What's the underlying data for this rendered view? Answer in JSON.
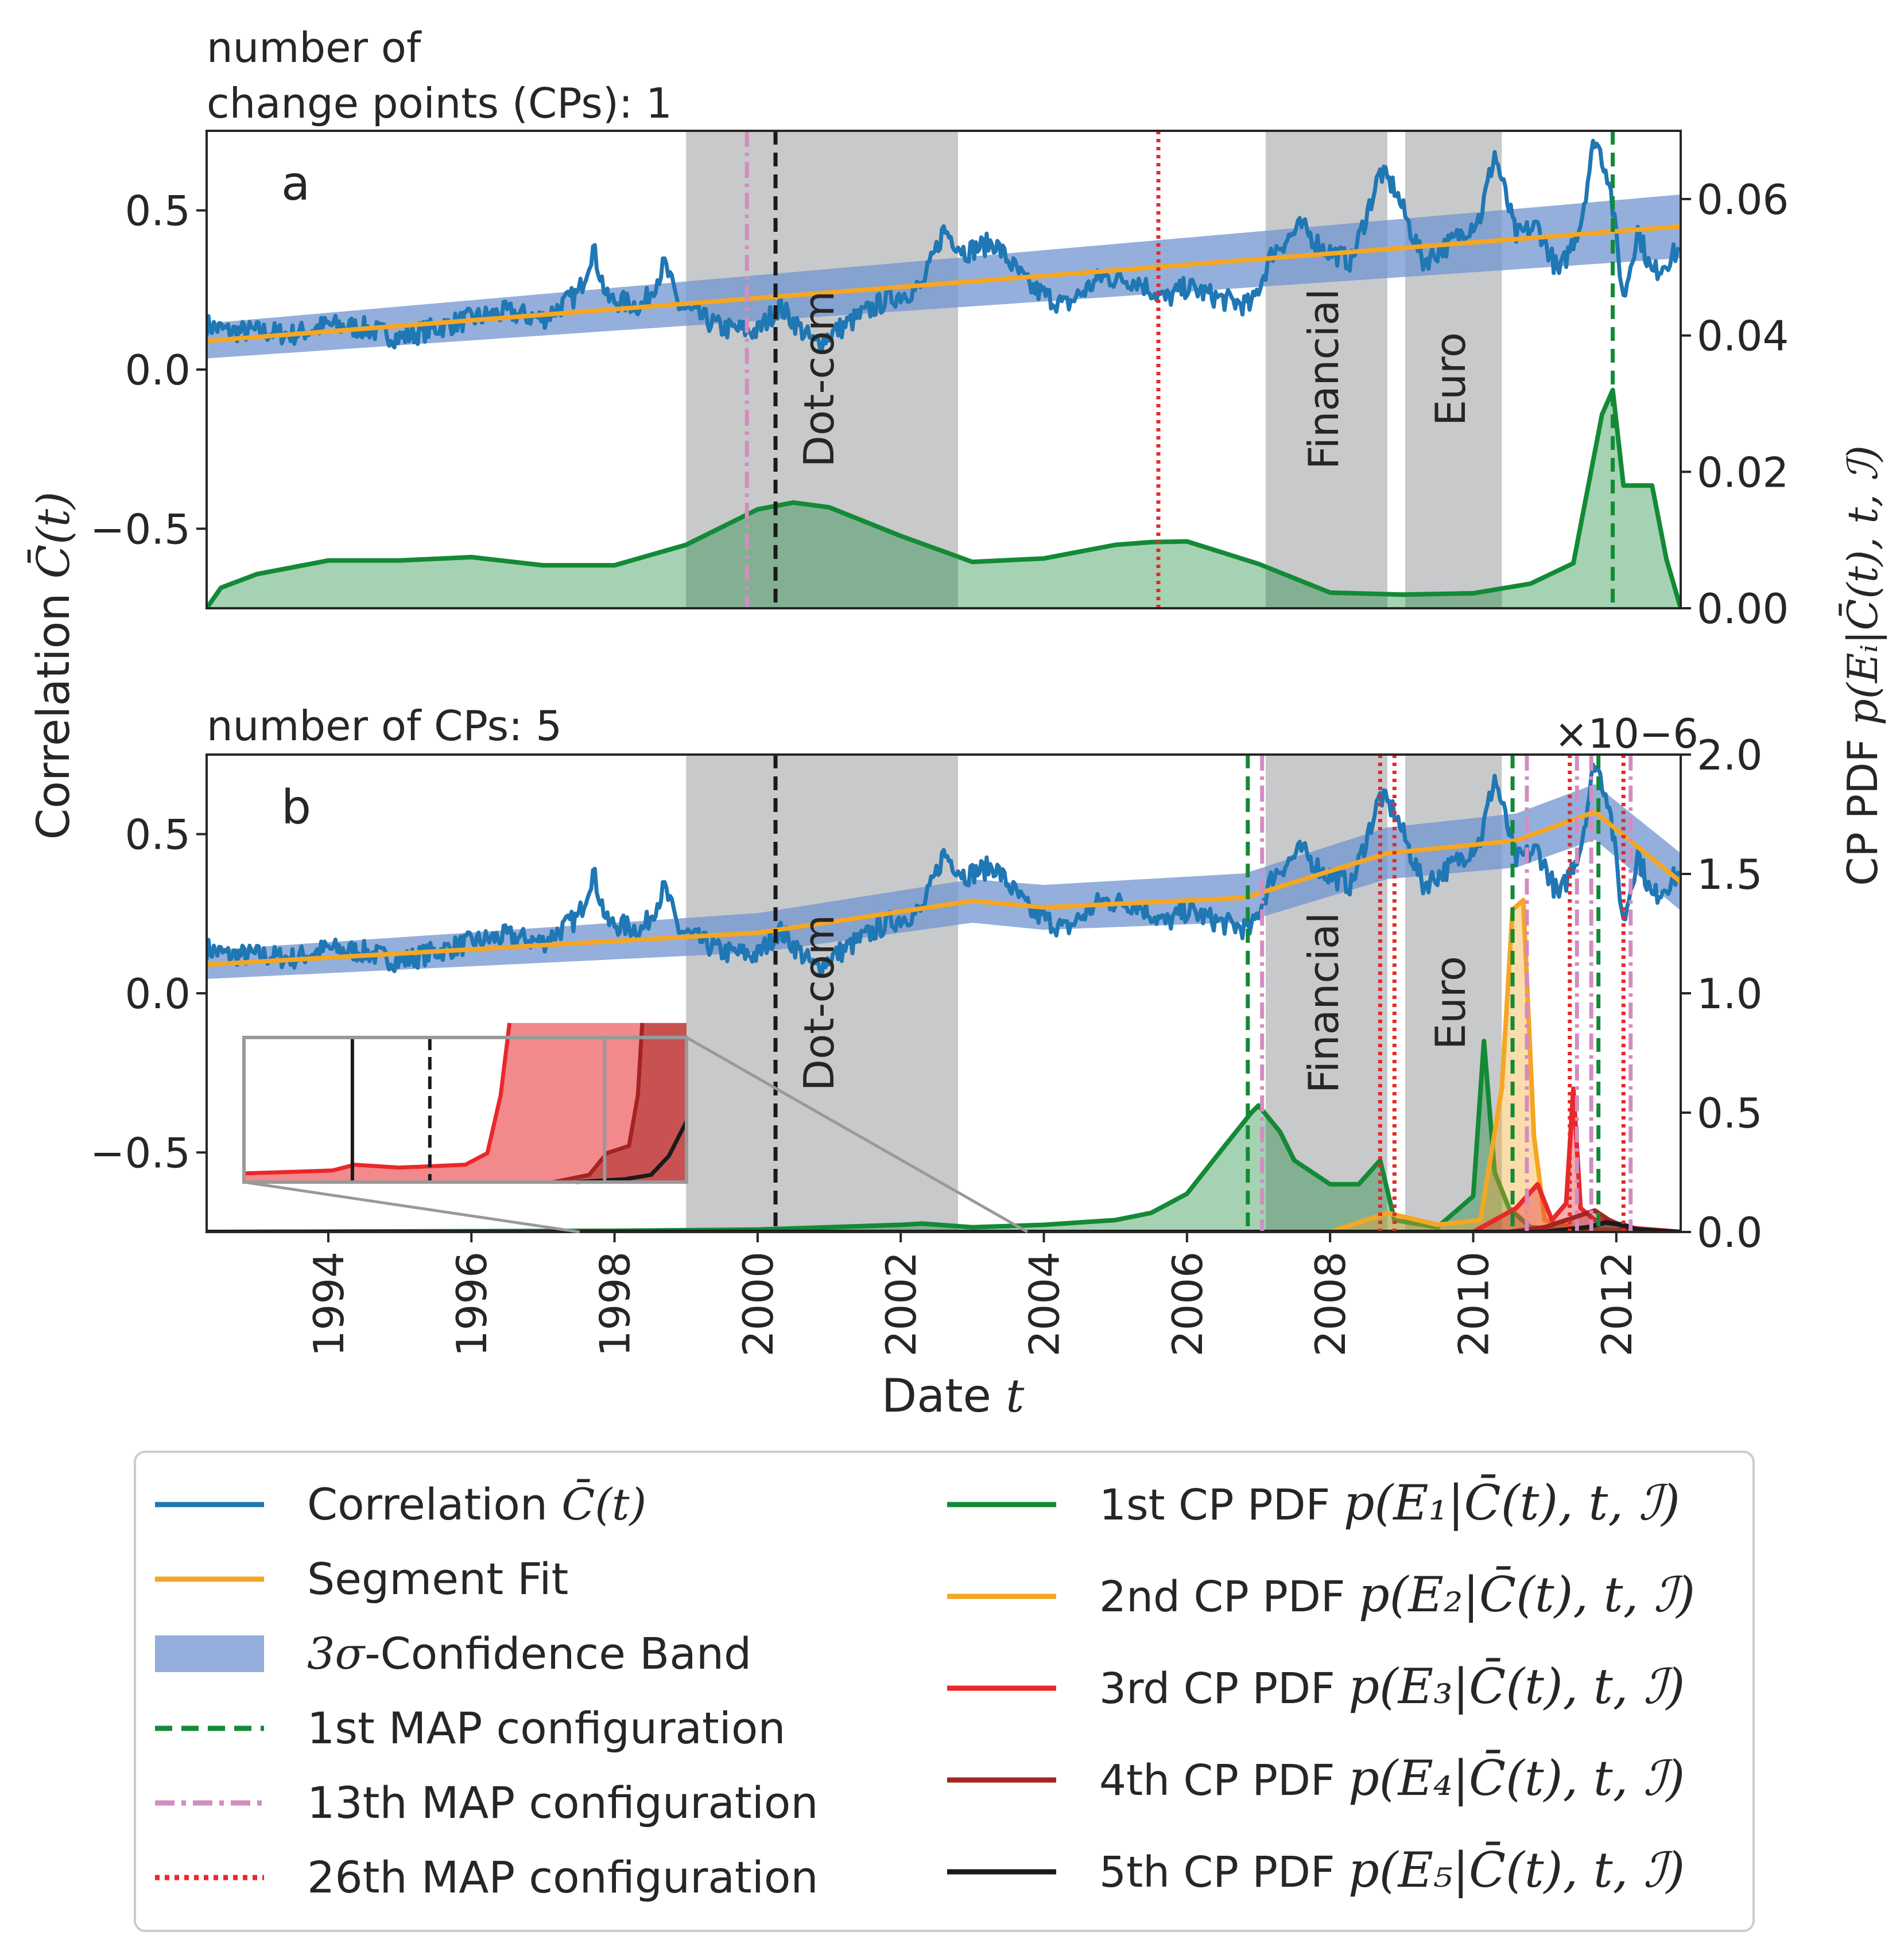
{
  "colors": {
    "correlation": "#1f77b4",
    "segment_fit": "#f5a623",
    "band": "#7094cf",
    "cp1": "#138a36",
    "cp2": "#f5a623",
    "cp3": "#e8282b",
    "cp4": "#a52322",
    "cp5": "#1a1a1a",
    "map13": "#d48cc0",
    "map26": "#e8282b",
    "crisis": "#c8c9cb"
  },
  "chart_data": [
    {
      "id": "a",
      "type": "line",
      "panel_label": "a",
      "title_line1": "number of",
      "title_line2": "change points (CPs): 1",
      "x_range": [
        1992.3,
        2012.9
      ],
      "y_left_range": [
        -0.75,
        0.75
      ],
      "y_left_ticks": [
        {
          "v": 0.5,
          "label": "0.5"
        },
        {
          "v": 0.0,
          "label": "0.0"
        },
        {
          "v": -0.5,
          "label": "−0.5"
        }
      ],
      "y_right_range": [
        0,
        0.07
      ],
      "y_right_ticks": [
        {
          "v": 0.06,
          "label": "0.06"
        },
        {
          "v": 0.04,
          "label": "0.04"
        },
        {
          "v": 0.02,
          "label": "0.02"
        },
        {
          "v": 0.0,
          "label": "0.00"
        }
      ],
      "crisis_periods": [
        {
          "from": 1999.0,
          "to": 2002.8,
          "label": "Dot-com"
        },
        {
          "from": 2007.1,
          "to": 2008.8,
          "label": "Financial"
        },
        {
          "from": 2009.05,
          "to": 2010.4,
          "label": "Euro"
        }
      ],
      "segment_fit": {
        "x": [
          1992.3,
          2012.9
        ],
        "y": [
          0.09,
          0.45
        ]
      },
      "band_halfwidth_start": 0.055,
      "band_halfwidth_end": 0.1,
      "cp_pdf": [
        {
          "name": "1st CP PDF",
          "x": [
            1992.3,
            1992.5,
            1993,
            1994,
            1995,
            1996,
            1997,
            1998,
            1999,
            2000,
            2000.5,
            2001,
            2002,
            2003,
            2004,
            2005,
            2005.5,
            2006,
            2007,
            2008,
            2009,
            2010,
            2010.8,
            2011.4,
            2011.8,
            2011.95,
            2012.1,
            2012.5,
            2012.7,
            2012.9
          ],
          "y": [
            0.0,
            0.003,
            0.005,
            0.007,
            0.007,
            0.0075,
            0.0063,
            0.0063,
            0.0093,
            0.0145,
            0.0155,
            0.0148,
            0.0106,
            0.0068,
            0.0073,
            0.0093,
            0.0097,
            0.0098,
            0.0065,
            0.0023,
            0.002,
            0.0022,
            0.0036,
            0.0066,
            0.0284,
            0.032,
            0.018,
            0.018,
            0.0072,
            0.0
          ]
        }
      ],
      "map_lines": [
        {
          "rank": "13th",
          "x": 1999.85
        },
        {
          "rank": "5th",
          "x": 2000.25
        },
        {
          "rank": "26th",
          "x": 2005.6
        },
        {
          "rank": "1st",
          "x": 2011.95
        }
      ]
    },
    {
      "id": "b",
      "type": "line",
      "panel_label": "b",
      "title_line1": "number of CPs: 5",
      "x_range": [
        1992.3,
        2012.9
      ],
      "x_ticks": [
        {
          "v": 1994,
          "label": "1994"
        },
        {
          "v": 1996,
          "label": "1996"
        },
        {
          "v": 1998,
          "label": "1998"
        },
        {
          "v": 2000,
          "label": "2000"
        },
        {
          "v": 2002,
          "label": "2002"
        },
        {
          "v": 2004,
          "label": "2004"
        },
        {
          "v": 2006,
          "label": "2006"
        },
        {
          "v": 2008,
          "label": "2008"
        },
        {
          "v": 2010,
          "label": "2010"
        },
        {
          "v": 2012,
          "label": "2012"
        }
      ],
      "xlabel": "Date",
      "xlabel_var": "t",
      "y_left_range": [
        -0.75,
        0.75
      ],
      "y_left_ticks": [
        {
          "v": 0.5,
          "label": "0.5"
        },
        {
          "v": 0.0,
          "label": "0.0"
        },
        {
          "v": -0.5,
          "label": "−0.5"
        }
      ],
      "y_right_range": [
        0,
        2.0
      ],
      "y_right_ticks": [
        {
          "v": 2.0,
          "label": "2.0"
        },
        {
          "v": 1.5,
          "label": "1.5"
        },
        {
          "v": 1.0,
          "label": "1.0"
        },
        {
          "v": 0.5,
          "label": "0.5"
        },
        {
          "v": 0.0,
          "label": "0.0"
        }
      ],
      "y_right_multiplier": "×10−6",
      "crisis_periods": [
        {
          "from": 1999.0,
          "to": 2002.8,
          "label": "Dot-com"
        },
        {
          "from": 2007.1,
          "to": 2008.8,
          "label": "Financial"
        },
        {
          "from": 2009.05,
          "to": 2010.4,
          "label": "Euro"
        }
      ],
      "segment_fit": {
        "x": [
          1992.3,
          2000,
          2003,
          2004,
          2006.8,
          2008.8,
          2010.6,
          2011.7,
          2012.9
        ],
        "y": [
          0.09,
          0.19,
          0.29,
          0.27,
          0.3,
          0.44,
          0.48,
          0.57,
          0.35
        ]
      },
      "cp_pdf": [
        {
          "name": "1st CP PDF",
          "x": [
            1992.3,
            1998,
            2000,
            2002,
            2002.3,
            2003,
            2004,
            2005,
            2005.5,
            2006,
            2006.5,
            2006.9,
            2007.0,
            2007.3,
            2007.5,
            2008,
            2008.4,
            2008.7,
            2008.9,
            2009.5,
            2010,
            2010.15,
            2010.3,
            2010.5,
            2010.8,
            2011.5,
            2012.9
          ],
          "y": [
            0.0,
            0.005,
            0.01,
            0.03,
            0.035,
            0.02,
            0.03,
            0.05,
            0.08,
            0.16,
            0.35,
            0.5,
            0.53,
            0.42,
            0.3,
            0.2,
            0.2,
            0.3,
            0.05,
            0.02,
            0.15,
            0.8,
            0.25,
            0.1,
            0.02,
            0.005,
            0.0
          ]
        },
        {
          "name": "2nd CP PDF",
          "x": [
            1992.3,
            2008,
            2008.8,
            2009.5,
            2010.1,
            2010.4,
            2010.55,
            2010.7,
            2010.85,
            2011.0,
            2011.5,
            2012.9
          ],
          "y": [
            0.0,
            0.0,
            0.08,
            0.03,
            0.05,
            0.6,
            1.35,
            1.39,
            0.4,
            0.05,
            0.01,
            0.0
          ]
        },
        {
          "name": "3rd CP PDF",
          "x": [
            1992.3,
            2010,
            2010.6,
            2010.9,
            2011.1,
            2011.3,
            2011.4,
            2011.5,
            2011.7,
            2011.9,
            2012.1,
            2012.9
          ],
          "y": [
            0.0,
            0.0,
            0.1,
            0.2,
            0.05,
            0.12,
            0.6,
            0.1,
            0.05,
            0.05,
            0.02,
            0.0
          ]
        },
        {
          "name": "4th CP PDF",
          "x": [
            1992.3,
            2010.5,
            2011.0,
            2011.4,
            2011.7,
            2011.9,
            2012.2,
            2012.9
          ],
          "y": [
            0.0,
            0.0,
            0.02,
            0.06,
            0.09,
            0.05,
            0.01,
            0.0
          ]
        },
        {
          "name": "5th CP PDF",
          "x": [
            1992.3,
            2011.0,
            2011.6,
            2011.85,
            2012.1,
            2012.3,
            2012.9
          ],
          "y": [
            0.0,
            0.0,
            0.02,
            0.04,
            0.03,
            0.01,
            0.0
          ]
        }
      ],
      "map_lines": [
        {
          "rank": "5th",
          "x": 2000.25
        },
        {
          "rank": "1st",
          "x": 2006.85
        },
        {
          "rank": "13th",
          "x": 2007.05
        },
        {
          "rank": "26th",
          "x": 2008.7
        },
        {
          "rank": "26th",
          "x": 2008.9
        },
        {
          "rank": "1st",
          "x": 2010.55
        },
        {
          "rank": "13th",
          "x": 2010.75
        },
        {
          "rank": "26th",
          "x": 2011.35
        },
        {
          "rank": "13th",
          "x": 2011.45
        },
        {
          "rank": "1st",
          "x": 2011.75
        },
        {
          "rank": "13th",
          "x": 2011.65
        },
        {
          "rank": "26th",
          "x": 2012.1
        },
        {
          "rank": "13th",
          "x": 2012.2
        }
      ]
    }
  ],
  "axes": {
    "ylabel_left": "Correlation",
    "ylabel_left_var": "C̄(t)",
    "ylabel_right": "CP PDF",
    "ylabel_right_var": "p(Eᵢ|C̄(t), t, ℐ)"
  },
  "legend": {
    "left": [
      {
        "label": "Correlation ",
        "var": "C̄(t)",
        "style": "line",
        "color_key": "correlation"
      },
      {
        "label": "Segment Fit",
        "var": "",
        "style": "line",
        "color_key": "segment_fit"
      },
      {
        "label": "",
        "var": "3σ",
        "suffix": "-Confidence Band",
        "style": "band",
        "color_key": "band"
      },
      {
        "label": "1st MAP configuration",
        "var": "",
        "style": "dash",
        "color_key": "cp1"
      },
      {
        "label": "13th MAP configuration",
        "var": "",
        "style": "dashdot",
        "color_key": "map13"
      },
      {
        "label": "26th MAP configuration",
        "var": "",
        "style": "dot",
        "color_key": "map26"
      }
    ],
    "right": [
      {
        "label": "1st CP PDF ",
        "var": "p(E₁|C̄(t), t, ℐ)",
        "color_key": "cp1"
      },
      {
        "label": "2nd CP PDF ",
        "var": "p(E₂|C̄(t), t, ℐ)",
        "color_key": "cp2"
      },
      {
        "label": "3rd CP PDF ",
        "var": "p(E₃|C̄(t), t, ℐ)",
        "color_key": "cp3"
      },
      {
        "label": "4th CP PDF ",
        "var": "p(E₄|C̄(t), t, ℐ)",
        "color_key": "cp4"
      },
      {
        "label": "5th CP PDF ",
        "var": "p(E₅|C̄(t), t, ℐ)",
        "color_key": "cp5"
      }
    ]
  }
}
